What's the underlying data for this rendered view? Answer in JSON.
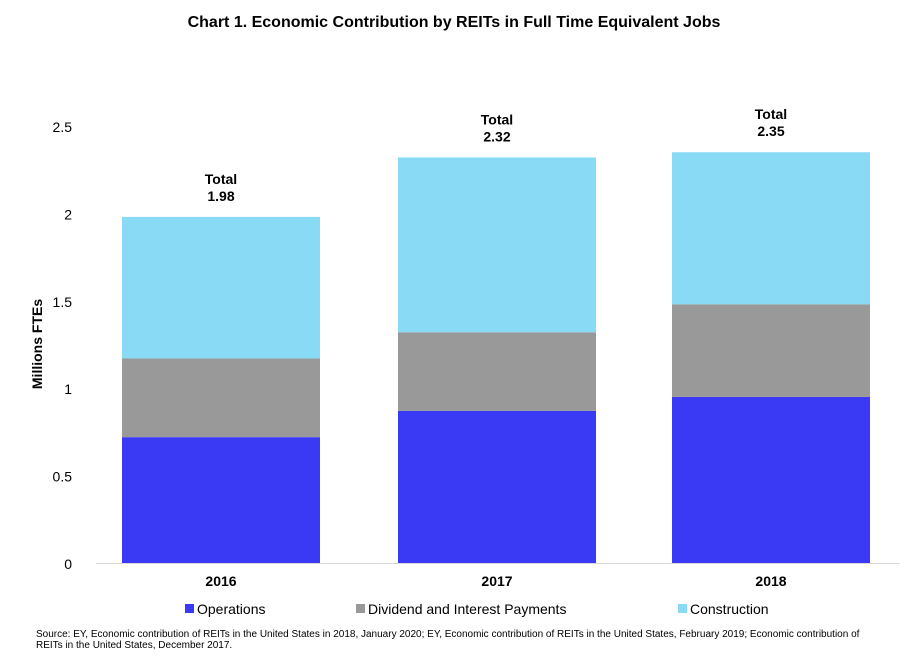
{
  "chart_data": {
    "type": "bar",
    "stacked": true,
    "title": "Chart 1. Economic Contribution by REITs in Full Time Equivalent Jobs",
    "xlabel": "",
    "ylabel": "Millions FTEs",
    "ylim": [
      0,
      2.5
    ],
    "yticks": [
      "0",
      "0.5",
      "1",
      "1.5",
      "2",
      "2.5"
    ],
    "grid": false,
    "legend_position": "bottom",
    "categories": [
      "2016",
      "2017",
      "2018"
    ],
    "series": [
      {
        "name": "Operations",
        "color": "#3a3af5",
        "values": [
          0.72,
          0.87,
          0.95
        ]
      },
      {
        "name": "Dividend and Interest Payments",
        "color": "#999999",
        "values": [
          0.45,
          0.45,
          0.53
        ]
      },
      {
        "name": "Construction",
        "color": "#89daf5",
        "values": [
          0.81,
          1.0,
          0.87
        ]
      }
    ],
    "totals": [
      {
        "label": "Total",
        "value": "1.98"
      },
      {
        "label": "Total",
        "value": "2.32"
      },
      {
        "label": "Total",
        "value": "2.35"
      }
    ]
  },
  "source_note": "Source: EY, Economic contribution of REITs in the United States in 2018, January 2020; EY, Economic contribution of REITs in the United States, February 2019; Economic contribution of REITs in the United States, December 2017."
}
